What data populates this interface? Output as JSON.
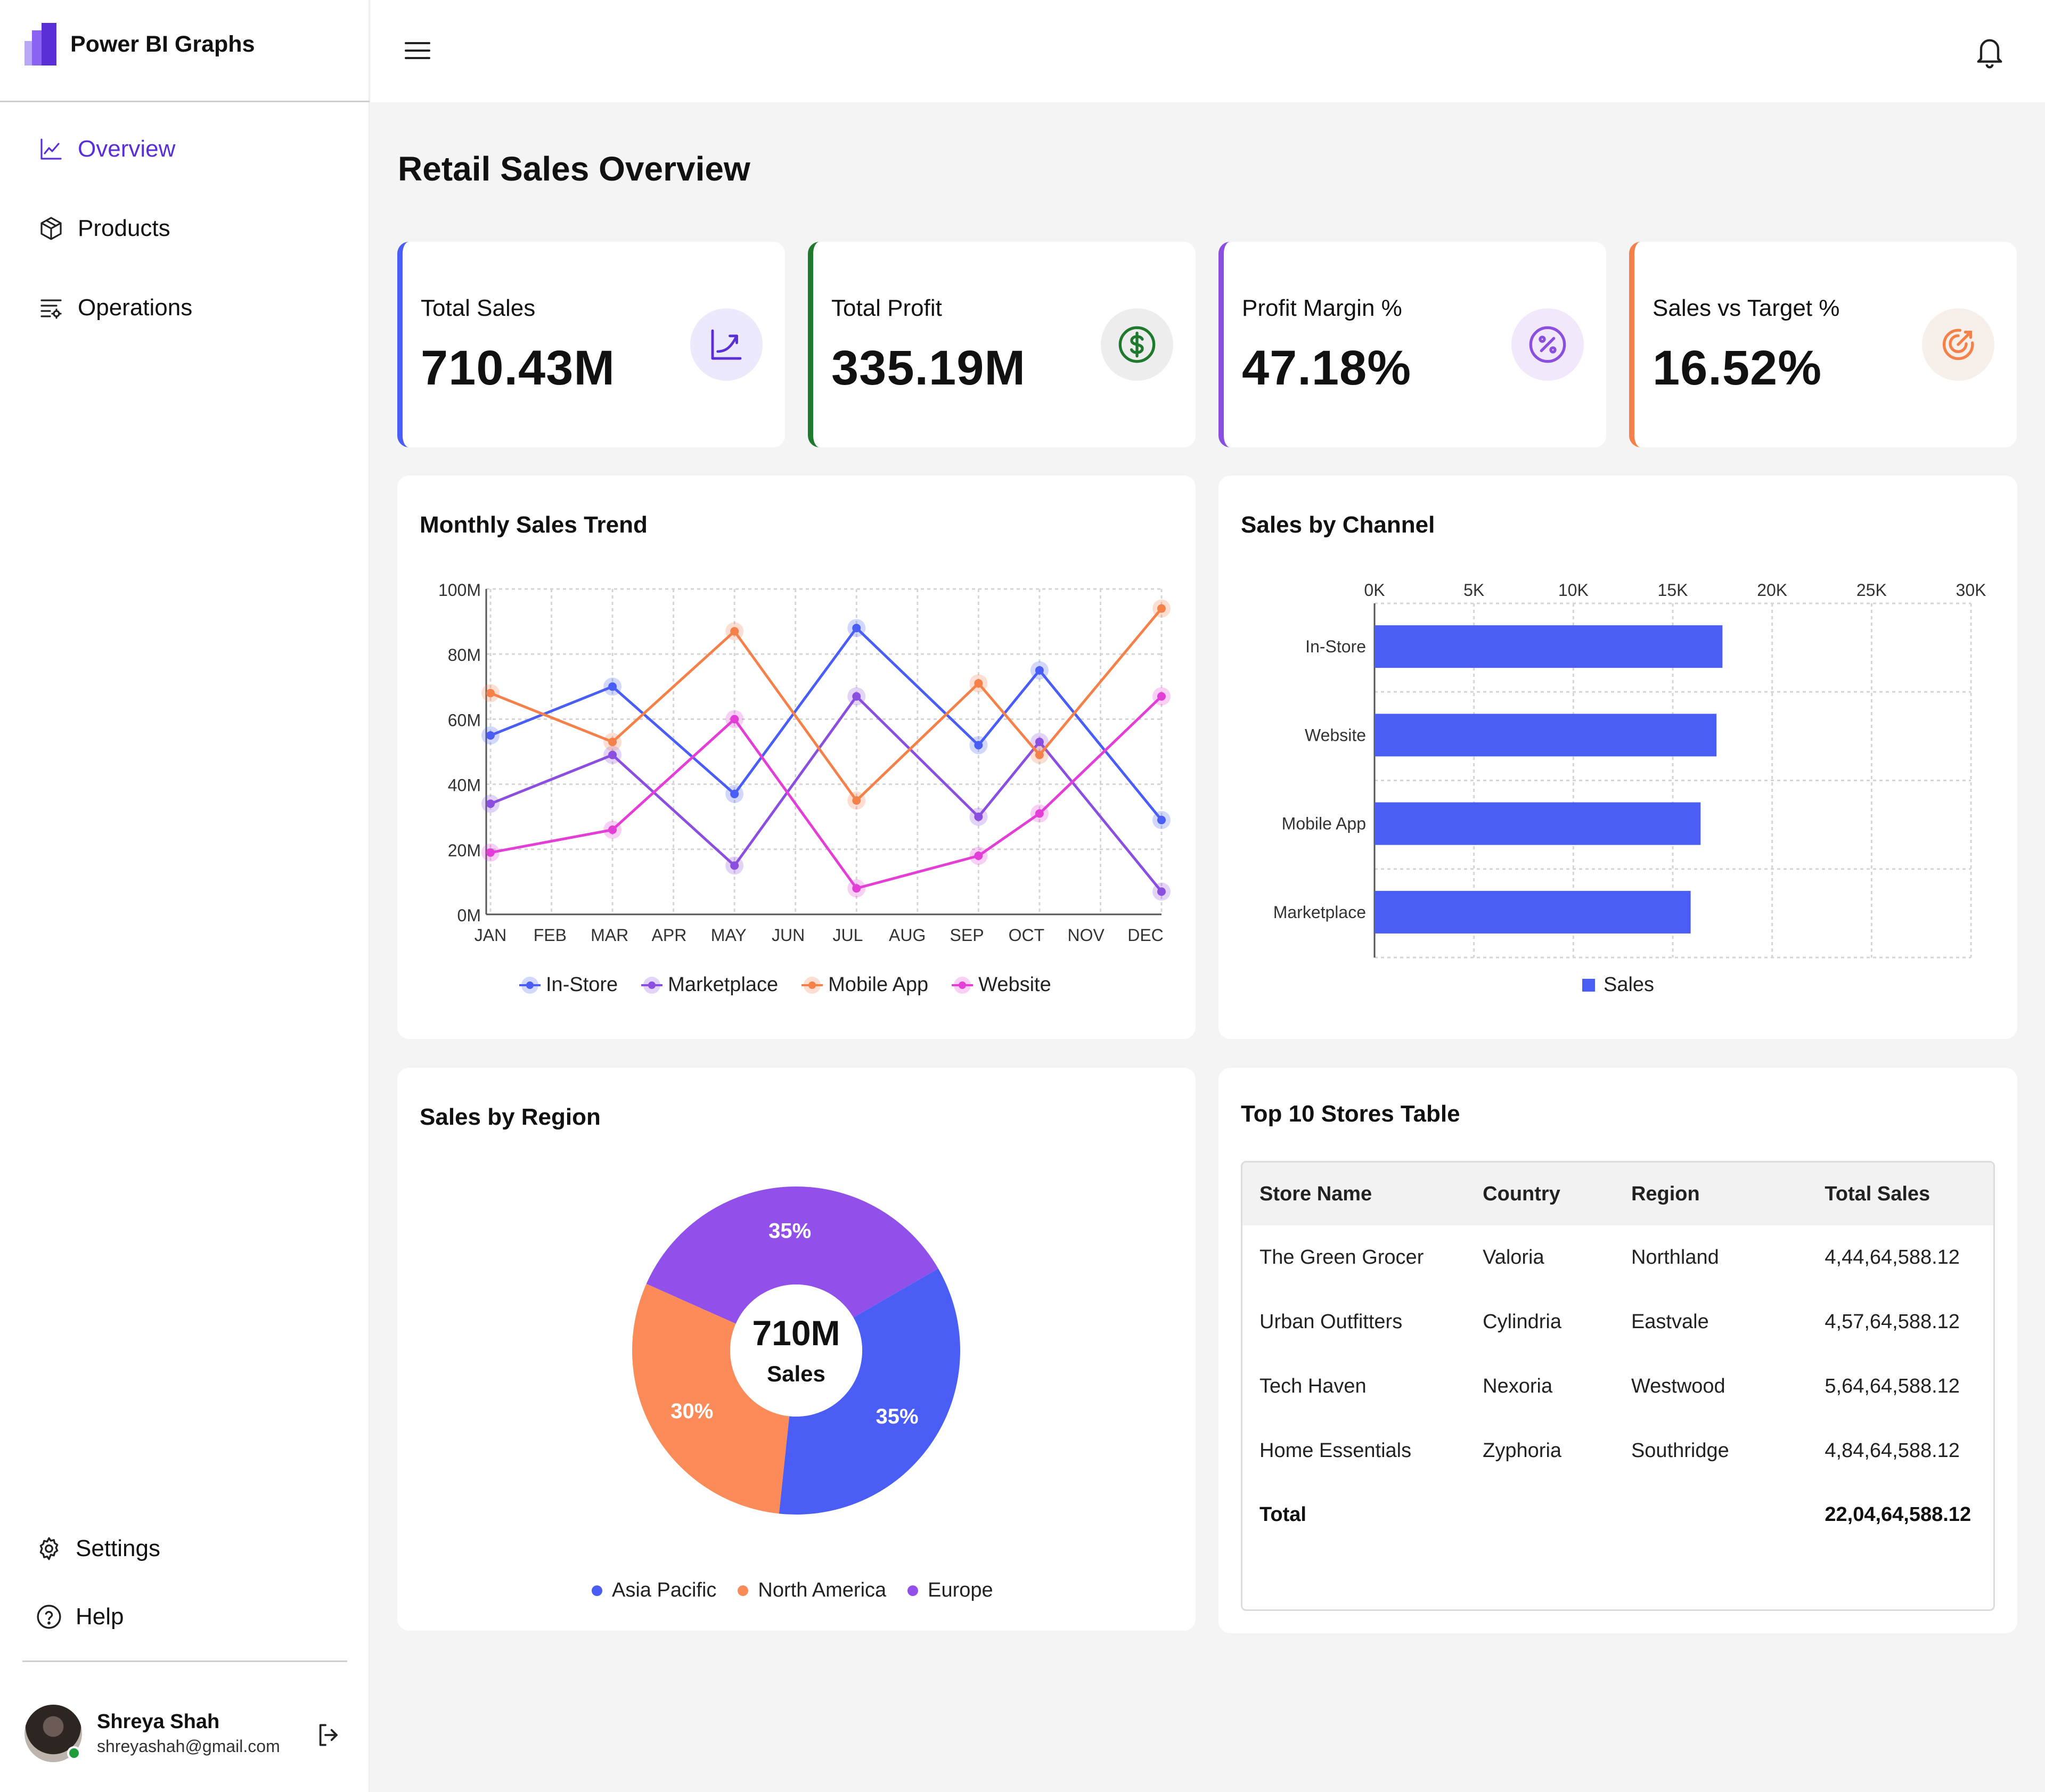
{
  "brand": {
    "title": "Power BI Graphs"
  },
  "sidebar": {
    "items": [
      {
        "label": "Overview",
        "icon": "line-chart-icon",
        "active": true
      },
      {
        "label": "Products",
        "icon": "box-icon",
        "active": false
      },
      {
        "label": "Operations",
        "icon": "filter-list-icon",
        "active": false
      }
    ],
    "bottom_items": [
      {
        "label": "Settings",
        "icon": "gear-icon"
      },
      {
        "label": "Help",
        "icon": "help-icon"
      }
    ],
    "user": {
      "name": "Shreya Shah",
      "email": "shreyashah@gmail.com"
    }
  },
  "page": {
    "title": "Retail Sales Overview"
  },
  "kpis": [
    {
      "label": "Total Sales",
      "value": "710.43M",
      "color": "#4a5ef5",
      "icon": "trend-up-icon"
    },
    {
      "label": "Total Profit",
      "value": "335.19M",
      "color": "#1f7a2e",
      "icon": "dollar-icon"
    },
    {
      "label": "Profit Margin %",
      "value": "47.18%",
      "color": "#8b4fe0",
      "icon": "percent-icon"
    },
    {
      "label": "Sales vs Target %",
      "value": "16.52%",
      "color": "#f5814a",
      "icon": "target-icon"
    }
  ],
  "panels": {
    "monthly_trend": {
      "title": "Monthly Sales Trend"
    },
    "channel": {
      "title": "Sales by Channel"
    },
    "region": {
      "title": "Sales by Region",
      "center_value": "710M",
      "center_label": "Sales"
    },
    "stores": {
      "title": "Top 10 Stores Table"
    }
  },
  "chart_data": [
    {
      "type": "line",
      "categories": [
        "JAN",
        "FEB",
        "MAR",
        "APR",
        "MAY",
        "JUN",
        "JUL",
        "AUG",
        "SEP",
        "OCT",
        "NOV",
        "DEC"
      ],
      "y_ticks": [
        "0M",
        "20M",
        "40M",
        "60M",
        "80M",
        "100M"
      ],
      "ylim": [
        0,
        100
      ],
      "grid": true,
      "legend": "bottom",
      "series": [
        {
          "name": "In-Store",
          "color": "#4a5ef5",
          "values": [
            55,
            null,
            70,
            null,
            37,
            null,
            88,
            null,
            52,
            75,
            null,
            29
          ]
        },
        {
          "name": "Marketplace",
          "color": "#8b4fe0",
          "values": [
            34,
            null,
            49,
            null,
            15,
            null,
            67,
            null,
            30,
            53,
            null,
            7
          ]
        },
        {
          "name": "Mobile App",
          "color": "#f5814a",
          "values": [
            68,
            null,
            53,
            null,
            87,
            null,
            35,
            null,
            71,
            49,
            null,
            94
          ]
        },
        {
          "name": "Website",
          "color": "#e33fd6",
          "values": [
            19,
            null,
            26,
            null,
            60,
            null,
            8,
            null,
            18,
            31,
            null,
            67
          ]
        }
      ]
    },
    {
      "type": "bar",
      "orientation": "horizontal",
      "categories": [
        "In-Store",
        "Website",
        "Mobile App",
        "Marketplace"
      ],
      "x_ticks": [
        "0K",
        "5K",
        "10K",
        "15K",
        "20K",
        "25K",
        "30K"
      ],
      "xlim": [
        0,
        30000
      ],
      "grid": true,
      "legend": "bottom",
      "series": [
        {
          "name": "Sales",
          "color": "#4a5ef5",
          "values": [
            17500,
            17200,
            16400,
            15900
          ]
        }
      ]
    },
    {
      "type": "pie",
      "donut": true,
      "legend": "bottom",
      "slices": [
        {
          "name": "Asia Pacific",
          "value": 35,
          "label": "35%",
          "color": "#4a5ef5"
        },
        {
          "name": "North America",
          "value": 30,
          "label": "30%",
          "color": "#fb8c5a"
        },
        {
          "name": "Europe",
          "value": 35,
          "label": "35%",
          "color": "#9150ea"
        }
      ]
    }
  ],
  "stores_table": {
    "headers": [
      "Store Name",
      "Country",
      "Region",
      "Total Sales"
    ],
    "rows": [
      [
        "The Green Grocer",
        "Valoria",
        "Northland",
        "4,44,64,588.12"
      ],
      [
        "Urban Outfitters",
        "Cylindria",
        "Eastvale",
        "4,57,64,588.12"
      ],
      [
        "Tech Haven",
        "Nexoria",
        "Westwood",
        "5,64,64,588.12"
      ],
      [
        "Home Essentials",
        "Zyphoria",
        "Southridge",
        "4,84,64,588.12"
      ]
    ],
    "total_label": "Total",
    "total_value": "22,04,64,588.12"
  }
}
